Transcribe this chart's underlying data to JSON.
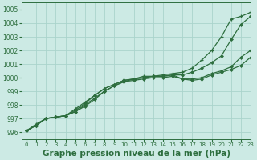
{
  "background_color": "#cceae4",
  "grid_color": "#aad4cc",
  "line_color": "#2d6e3e",
  "xlabel": "Graphe pression niveau de la mer (hPa)",
  "xlabel_fontsize": 7.5,
  "xlim": [
    -0.5,
    23
  ],
  "ylim": [
    995.5,
    1005.5
  ],
  "yticks": [
    996,
    997,
    998,
    999,
    1000,
    1001,
    1002,
    1003,
    1004,
    1005
  ],
  "xticks": [
    0,
    1,
    2,
    3,
    4,
    5,
    6,
    7,
    8,
    9,
    10,
    11,
    12,
    13,
    14,
    15,
    16,
    17,
    18,
    19,
    20,
    21,
    22,
    23
  ],
  "series_top": [
    996.1,
    996.6,
    997.0,
    997.1,
    997.2,
    997.6,
    998.1,
    998.7,
    999.2,
    999.5,
    999.8,
    999.9,
    1000.1,
    1000.1,
    1000.2,
    1000.3,
    1000.4,
    1000.7,
    1001.3,
    1002.0,
    1003.0,
    1004.3,
    1004.5,
    1004.8
  ],
  "series_mid": [
    996.1,
    996.5,
    997.0,
    997.1,
    997.2,
    997.7,
    998.2,
    998.7,
    999.2,
    999.5,
    999.8,
    999.9,
    1000.0,
    1000.1,
    1000.1,
    1000.2,
    1000.2,
    1000.4,
    1000.7,
    1001.1,
    1001.6,
    1002.8,
    1003.9,
    1004.5
  ],
  "series_low1": [
    996.1,
    996.5,
    997.0,
    997.1,
    997.2,
    997.5,
    998.0,
    998.5,
    999.0,
    999.4,
    999.7,
    999.9,
    1000.0,
    1000.1,
    1000.1,
    1000.2,
    999.9,
    999.9,
    1000.0,
    1000.3,
    1000.5,
    1000.8,
    1001.5,
    1002.0
  ],
  "series_low2": [
    996.1,
    996.5,
    997.0,
    997.1,
    997.2,
    997.5,
    997.9,
    998.4,
    999.0,
    999.4,
    999.7,
    999.8,
    999.9,
    1000.0,
    1000.0,
    1000.1,
    999.9,
    999.8,
    999.9,
    1000.2,
    1000.4,
    1000.6,
    1000.9,
    1001.5
  ]
}
